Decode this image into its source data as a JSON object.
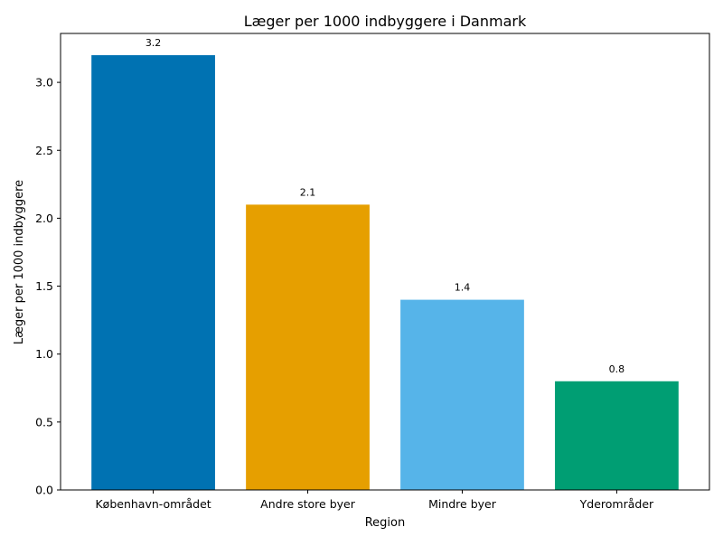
{
  "chart_data": {
    "type": "bar",
    "title": "Læger per 1000 indbyggere i Danmark",
    "xlabel": "Region",
    "ylabel": "Læger per 1000 indbyggere",
    "categories": [
      "København-området",
      "Andre store byer",
      "Mindre byer",
      "Yderområder"
    ],
    "values": [
      3.2,
      2.1,
      1.4,
      0.8
    ],
    "value_labels": [
      "3.2",
      "2.1",
      "1.4",
      "0.8"
    ],
    "colors": [
      "#0072b2",
      "#e69f00",
      "#56b4e9",
      "#009e73"
    ],
    "ylim": [
      0,
      3.36
    ],
    "yticks": [
      0.0,
      0.5,
      1.0,
      1.5,
      2.0,
      2.5,
      3.0
    ],
    "ytick_labels": [
      "0.0",
      "0.5",
      "1.0",
      "1.5",
      "2.0",
      "2.5",
      "3.0"
    ],
    "grid": false,
    "legend": "none"
  }
}
